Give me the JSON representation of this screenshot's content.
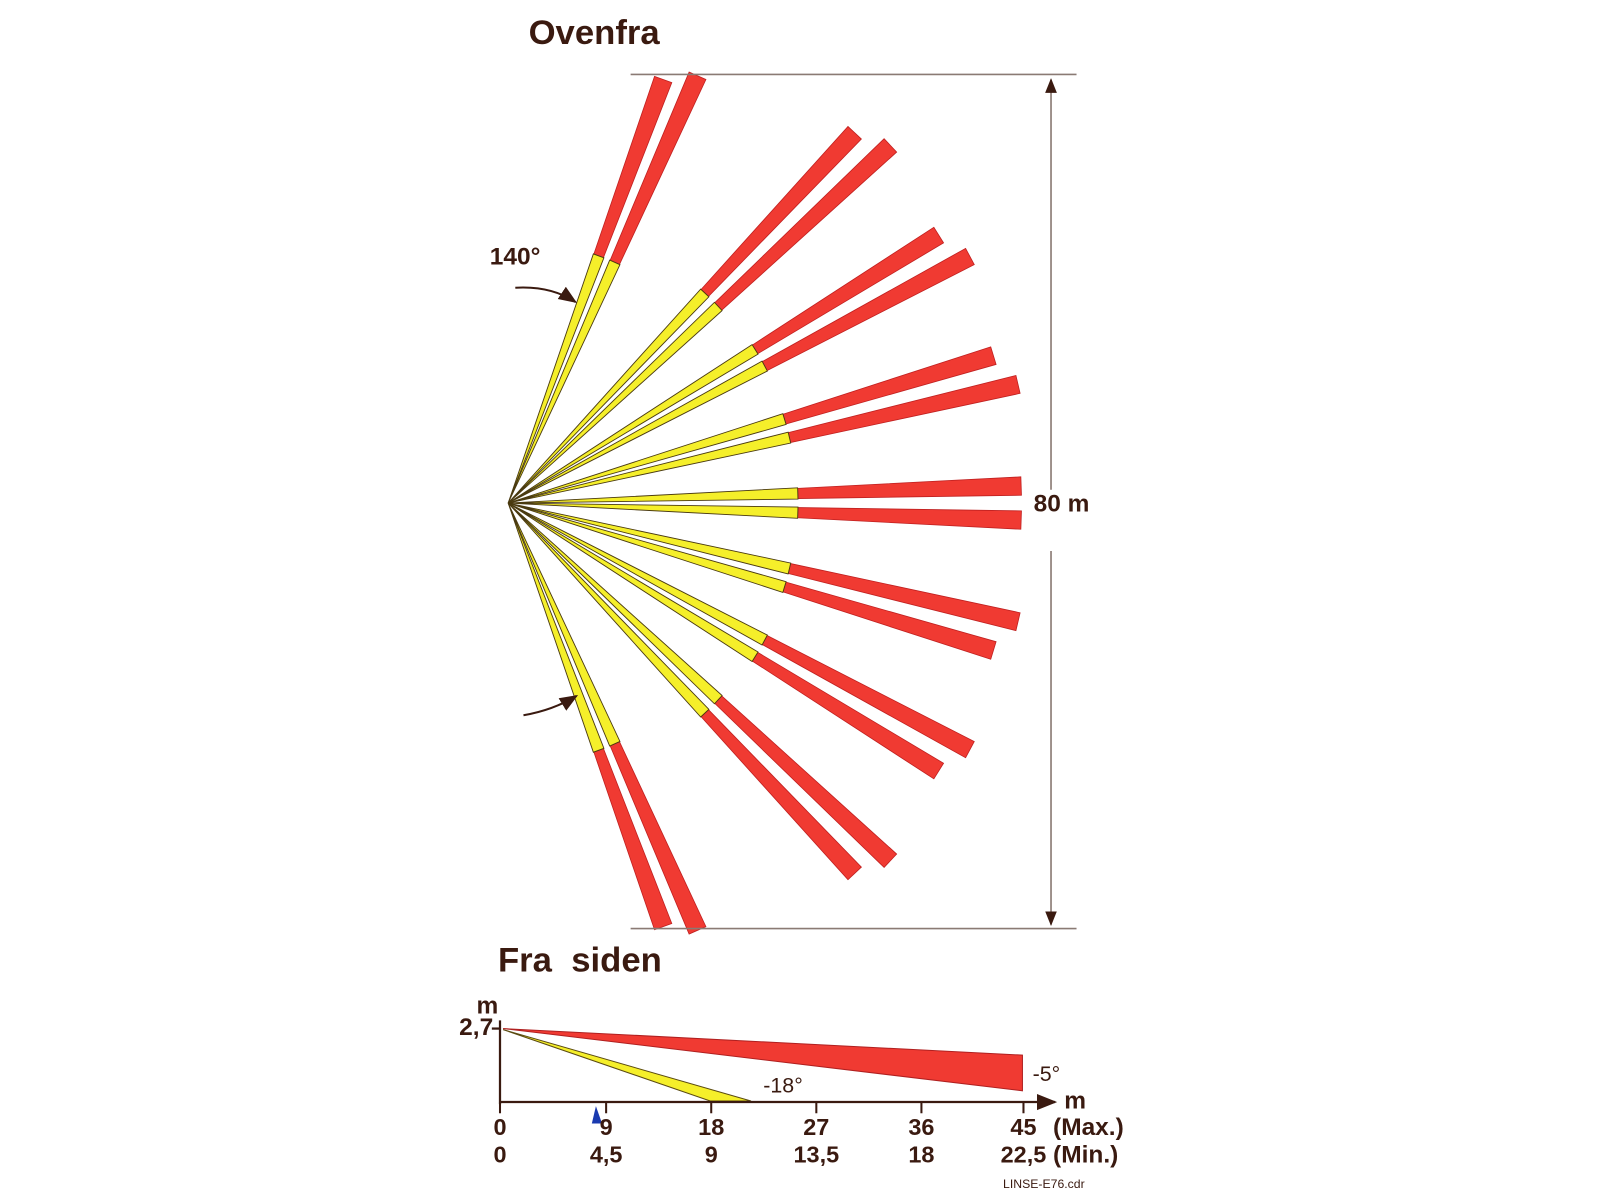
{
  "top_view": {
    "title": "Ovenfra",
    "angle_label": "140°",
    "distance_label": "80 m"
  },
  "side_view": {
    "title": "Fra  siden",
    "y_unit": "m",
    "height_label": "2,7",
    "upper_angle": "-5°",
    "lower_angle": "-18°",
    "x_unit": "m",
    "max_ticks": [
      "0",
      "9",
      "18",
      "27",
      "36",
      "45"
    ],
    "max_label": "(Max.)",
    "min_ticks": [
      "0",
      "4,5",
      "9",
      "13,5",
      "18",
      "22,5"
    ],
    "min_label": "(Min.)"
  },
  "file_label": "LINSE-E76.cdr"
}
